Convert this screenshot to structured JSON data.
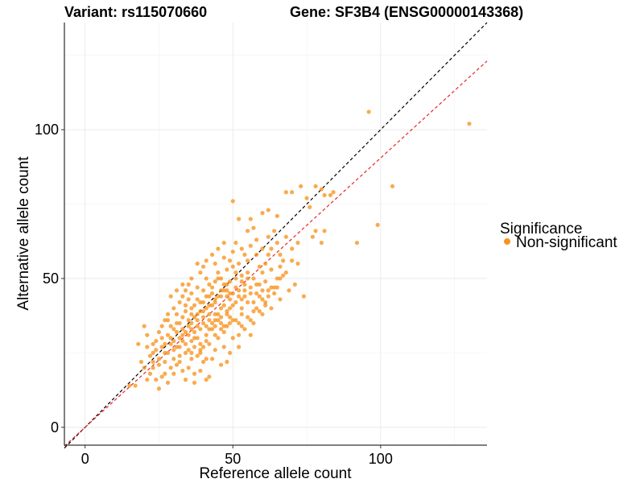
{
  "chart_data": {
    "type": "scatter",
    "title_left": "Variant: rs115070660",
    "title_right": "Gene: SF3B4 (ENSG00000143368)",
    "xlabel": "Reference allele count",
    "ylabel": "Alternative allele count",
    "xlim": [
      -7,
      136
    ],
    "ylim": [
      -6,
      136
    ],
    "x_ticks": [
      0,
      50,
      100
    ],
    "y_ticks": [
      0,
      50,
      100
    ],
    "x_tick_labels": [
      "0",
      "50",
      "100"
    ],
    "y_tick_labels": [
      "0",
      "50",
      "100"
    ],
    "grid": true,
    "legend": {
      "title": "Significance",
      "position": "right",
      "entries": [
        {
          "label": "Non-significant",
          "color": "#F7931E"
        }
      ]
    },
    "reference_lines": [
      {
        "style": "dashed",
        "color": "#000000",
        "slope": 1.0,
        "intercept": 0
      },
      {
        "style": "dashed",
        "color": "#E8262B",
        "slope": 0.905,
        "intercept": 0
      }
    ],
    "series": [
      {
        "name": "Non-significant",
        "color": "#F7931E",
        "points": [
          [
            96,
            106
          ],
          [
            130,
            102
          ],
          [
            104,
            81
          ],
          [
            73,
            81
          ],
          [
            78,
            81
          ],
          [
            68,
            79
          ],
          [
            70,
            79
          ],
          [
            80,
            80
          ],
          [
            84,
            79
          ],
          [
            83,
            78
          ],
          [
            81,
            78
          ],
          [
            50,
            76
          ],
          [
            60,
            72
          ],
          [
            56,
            70
          ],
          [
            52,
            70
          ],
          [
            65,
            71
          ],
          [
            62,
            73
          ],
          [
            75,
            77
          ],
          [
            76,
            74
          ],
          [
            99,
            68
          ],
          [
            78,
            66
          ],
          [
            81,
            66
          ],
          [
            77,
            64
          ],
          [
            92,
            62
          ],
          [
            80,
            62
          ],
          [
            55,
            66
          ],
          [
            57,
            67
          ],
          [
            58,
            63
          ],
          [
            56,
            61
          ],
          [
            51,
            62
          ],
          [
            53,
            60
          ],
          [
            54,
            58
          ],
          [
            62,
            58
          ],
          [
            63,
            60
          ],
          [
            65,
            62
          ],
          [
            67,
            56
          ],
          [
            70,
            56
          ],
          [
            66,
            54
          ],
          [
            72,
            55
          ],
          [
            45,
            60
          ],
          [
            43,
            58
          ],
          [
            44,
            55
          ],
          [
            41,
            56
          ],
          [
            40,
            54
          ],
          [
            38,
            55
          ],
          [
            47,
            57
          ],
          [
            49,
            56
          ],
          [
            48,
            53
          ],
          [
            50,
            54
          ],
          [
            52,
            55
          ],
          [
            59,
            54
          ],
          [
            60,
            52
          ],
          [
            55,
            52
          ],
          [
            45,
            50
          ],
          [
            44,
            49
          ],
          [
            42,
            48
          ],
          [
            46,
            50
          ],
          [
            48,
            48
          ],
          [
            51,
            50
          ],
          [
            53,
            49
          ],
          [
            57,
            50
          ],
          [
            58,
            48
          ],
          [
            61,
            49
          ],
          [
            63,
            47
          ],
          [
            65,
            50
          ],
          [
            64,
            45
          ],
          [
            66,
            43
          ],
          [
            35,
            48
          ],
          [
            34,
            46
          ],
          [
            36,
            45
          ],
          [
            38,
            47
          ],
          [
            40,
            46
          ],
          [
            41,
            44
          ],
          [
            43,
            45
          ],
          [
            45,
            44
          ],
          [
            47,
            46
          ],
          [
            49,
            43
          ],
          [
            52,
            44
          ],
          [
            54,
            46
          ],
          [
            56,
            45
          ],
          [
            59,
            44
          ],
          [
            32,
            42
          ],
          [
            33,
            44
          ],
          [
            35,
            43
          ],
          [
            37,
            41
          ],
          [
            39,
            42
          ],
          [
            42,
            41
          ],
          [
            44,
            42
          ],
          [
            46,
            40
          ],
          [
            48,
            39
          ],
          [
            50,
            41
          ],
          [
            53,
            40
          ],
          [
            55,
            42
          ],
          [
            57,
            39
          ],
          [
            60,
            38
          ],
          [
            30,
            40
          ],
          [
            31,
            38
          ],
          [
            33,
            37
          ],
          [
            34,
            39
          ],
          [
            36,
            38
          ],
          [
            38,
            36
          ],
          [
            40,
            37
          ],
          [
            42,
            38
          ],
          [
            44,
            36
          ],
          [
            46,
            35
          ],
          [
            49,
            37
          ],
          [
            51,
            36
          ],
          [
            53,
            34
          ],
          [
            56,
            36
          ],
          [
            27,
            36
          ],
          [
            28,
            38
          ],
          [
            29,
            34
          ],
          [
            31,
            35
          ],
          [
            33,
            33
          ],
          [
            35,
            34
          ],
          [
            37,
            32
          ],
          [
            39,
            33
          ],
          [
            41,
            31
          ],
          [
            43,
            33
          ],
          [
            45,
            30
          ],
          [
            47,
            32
          ],
          [
            50,
            30
          ],
          [
            52,
            31
          ],
          [
            25,
            32
          ],
          [
            26,
            30
          ],
          [
            28,
            31
          ],
          [
            30,
            29
          ],
          [
            32,
            30
          ],
          [
            34,
            28
          ],
          [
            36,
            29
          ],
          [
            38,
            30
          ],
          [
            40,
            27
          ],
          [
            42,
            28
          ],
          [
            44,
            26
          ],
          [
            47,
            27
          ],
          [
            49,
            25
          ],
          [
            52,
            27
          ],
          [
            23,
            28
          ],
          [
            24,
            26
          ],
          [
            26,
            27
          ],
          [
            28,
            25
          ],
          [
            30,
            26
          ],
          [
            32,
            24
          ],
          [
            34,
            25
          ],
          [
            36,
            23
          ],
          [
            38,
            24
          ],
          [
            40,
            22
          ],
          [
            43,
            23
          ],
          [
            46,
            21
          ],
          [
            48,
            22
          ],
          [
            22,
            24
          ],
          [
            23,
            22
          ],
          [
            25,
            21
          ],
          [
            27,
            22
          ],
          [
            29,
            20
          ],
          [
            31,
            21
          ],
          [
            33,
            19
          ],
          [
            35,
            20
          ],
          [
            37,
            18
          ],
          [
            39,
            19
          ],
          [
            42,
            17
          ],
          [
            20,
            20
          ],
          [
            22,
            18
          ],
          [
            24,
            16
          ],
          [
            26,
            17
          ],
          [
            28,
            15
          ],
          [
            25,
            13
          ],
          [
            17,
            14
          ],
          [
            15,
            14
          ],
          [
            21,
            16
          ],
          [
            19,
            22
          ],
          [
            18,
            28
          ],
          [
            20,
            34
          ],
          [
            21,
            31
          ],
          [
            30,
            18
          ],
          [
            34,
            16
          ],
          [
            37,
            15
          ],
          [
            41,
            16
          ],
          [
            23,
            20
          ],
          [
            27,
            18
          ],
          [
            32,
            22
          ],
          [
            36,
            25
          ],
          [
            39,
            26
          ],
          [
            41,
            29
          ],
          [
            44,
            31
          ],
          [
            46,
            33
          ],
          [
            48,
            34
          ],
          [
            58,
            40
          ],
          [
            61,
            42
          ],
          [
            62,
            44
          ],
          [
            64,
            47
          ],
          [
            66,
            50
          ],
          [
            68,
            52
          ],
          [
            69,
            46
          ],
          [
            71,
            48
          ],
          [
            74,
            44
          ],
          [
            60,
            46
          ],
          [
            55,
            56
          ],
          [
            50,
            59
          ],
          [
            47,
            62
          ],
          [
            29,
            44
          ],
          [
            31,
            46
          ],
          [
            33,
            48
          ],
          [
            36,
            50
          ],
          [
            39,
            52
          ],
          [
            41,
            50
          ],
          [
            43,
            47
          ],
          [
            45,
            52
          ],
          [
            49,
            45
          ],
          [
            51,
            47
          ],
          [
            54,
            44
          ],
          [
            57,
            42
          ],
          [
            59,
            48
          ],
          [
            26,
            34
          ],
          [
            28,
            36
          ],
          [
            30,
            33
          ],
          [
            32,
            35
          ],
          [
            35,
            36
          ],
          [
            37,
            37
          ],
          [
            39,
            39
          ],
          [
            41,
            40
          ],
          [
            43,
            41
          ],
          [
            45,
            38
          ],
          [
            47,
            41
          ],
          [
            49,
            40
          ],
          [
            51,
            42
          ],
          [
            53,
            43
          ],
          [
            24,
            29
          ],
          [
            27,
            28
          ],
          [
            29,
            30
          ],
          [
            31,
            27
          ],
          [
            33,
            29
          ],
          [
            35,
            31
          ],
          [
            37,
            30
          ],
          [
            39,
            28
          ],
          [
            41,
            34
          ],
          [
            43,
            35
          ],
          [
            45,
            36
          ],
          [
            47,
            34
          ],
          [
            49,
            35
          ],
          [
            53,
            38
          ],
          [
            55,
            37
          ],
          [
            57,
            35
          ],
          [
            59,
            39
          ],
          [
            61,
            41
          ],
          [
            63,
            40
          ],
          [
            52,
            46
          ],
          [
            54,
            48
          ],
          [
            56,
            47
          ],
          [
            58,
            45
          ],
          [
            60,
            43
          ],
          [
            62,
            46
          ],
          [
            48,
            44
          ],
          [
            46,
            46
          ],
          [
            34,
            41
          ],
          [
            36,
            40
          ],
          [
            38,
            43
          ],
          [
            40,
            42
          ],
          [
            42,
            44
          ],
          [
            44,
            43
          ],
          [
            46,
            44
          ],
          [
            48,
            46
          ],
          [
            50,
            45
          ],
          [
            38,
            38
          ],
          [
            40,
            39
          ],
          [
            42,
            36
          ],
          [
            44,
            38
          ],
          [
            46,
            37
          ],
          [
            48,
            38
          ],
          [
            50,
            36
          ],
          [
            52,
            35
          ],
          [
            54,
            33
          ],
          [
            56,
            31
          ],
          [
            36,
            33
          ],
          [
            38,
            34
          ],
          [
            40,
            35
          ],
          [
            42,
            33
          ],
          [
            44,
            34
          ],
          [
            31,
            32
          ],
          [
            33,
            31
          ],
          [
            35,
            26
          ],
          [
            37,
            27
          ],
          [
            39,
            25
          ],
          [
            41,
            23
          ],
          [
            29,
            28
          ],
          [
            27,
            25
          ],
          [
            25,
            23
          ],
          [
            23,
            25
          ],
          [
            21,
            27
          ],
          [
            30,
            23
          ],
          [
            32,
            27
          ],
          [
            34,
            32
          ],
          [
            36,
            35
          ],
          [
            62,
            64
          ],
          [
            64,
            66
          ],
          [
            70,
            60
          ],
          [
            72,
            62
          ],
          [
            58,
            58
          ],
          [
            60,
            60
          ],
          [
            66,
            58
          ],
          [
            68,
            64
          ],
          [
            61,
            55
          ],
          [
            63,
            53
          ],
          [
            67,
            51
          ],
          [
            65,
            47
          ],
          [
            47,
            48
          ],
          [
            49,
            49
          ],
          [
            51,
            52
          ],
          [
            53,
            51
          ],
          [
            55,
            50
          ]
        ]
      }
    ]
  }
}
